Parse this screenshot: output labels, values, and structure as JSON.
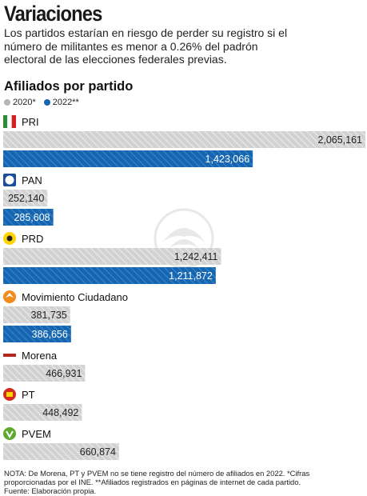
{
  "header": {
    "title": "Variaciones",
    "subtitle": "Los partidos estarían en riesgo de perder su registro si el número de militantes es menor a 0.26% del padrón electoral de las elecciones federales previas."
  },
  "colors": {
    "bar_2020": "#cfcfcf",
    "bar_2022": "#1565b0",
    "text_on_2022": "#ffffff"
  },
  "chart_data": {
    "type": "bar",
    "orientation": "horizontal",
    "title": "Afiliados por partido",
    "categories": [
      "PRI",
      "PAN",
      "PRD",
      "Movimiento Ciudadano",
      "Morena",
      "PT",
      "PVEM"
    ],
    "category_icons": [
      "pri-logo-icon",
      "pan-logo-icon",
      "prd-logo-icon",
      "movimiento-ciudadano-logo-icon",
      "morena-logo-icon",
      "pt-logo-icon",
      "pvem-logo-icon"
    ],
    "series": [
      {
        "name": "2020*",
        "values": [
          2065161,
          252140,
          1242411,
          381735,
          466931,
          448492,
          660874
        ]
      },
      {
        "name": "2022**",
        "values": [
          1423066,
          285608,
          1211872,
          386656,
          null,
          null,
          null
        ]
      }
    ],
    "value_labels": {
      "2020*": [
        "2,065,161",
        "252,140",
        "1,242,411",
        "381,735",
        "466,931",
        "448,492",
        "660,874"
      ],
      "2022**": [
        "1,423,066",
        "285,608",
        "1,211,872",
        "386,656",
        "",
        "",
        ""
      ]
    },
    "xlim": [
      0,
      2065161
    ],
    "legend_position": "top-left",
    "grid": false
  },
  "footer": {
    "note": "NOTA: De Morena, PT y PVEM no se tiene registro del número de afiliados en 2022. *Cifras proporcionadas por el INE. **Afiliados registrados en páginas de internet de cada partido.",
    "source": "Fuente: Elaboración propia."
  }
}
